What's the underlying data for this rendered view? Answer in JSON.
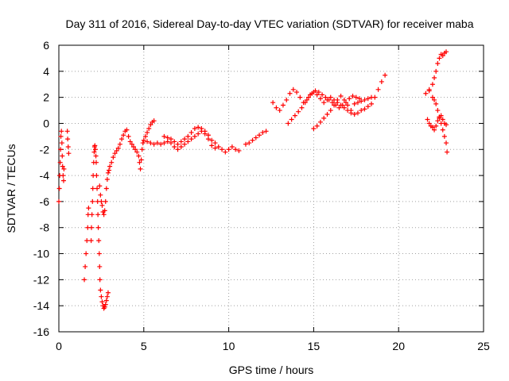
{
  "chart_data": {
    "type": "scatter",
    "title": "Day 311 of 2016, Sidereal Day-to-day VTEC variation (SDTVAR) for receiver maba",
    "xlabel": "GPS time / hours",
    "ylabel": "SDTVAR / TECUs",
    "xlim": [
      0,
      25
    ],
    "ylim": [
      -16,
      6
    ],
    "xticks": [
      "0",
      "5",
      "10",
      "15",
      "20",
      "25"
    ],
    "yticks": [
      "6",
      "4",
      "2",
      "0",
      "-2",
      "-4",
      "-6",
      "-8",
      "-10",
      "-12",
      "-14",
      "-16"
    ],
    "grid": true,
    "legend": "none",
    "marker": "+",
    "color": "#ff0000",
    "series": [
      {
        "points": [
          [
            0.0,
            -6.0
          ],
          [
            0.03,
            -5.0
          ],
          [
            0.05,
            -4.0
          ],
          [
            0.08,
            -3.0
          ],
          [
            0.1,
            -2.0
          ],
          [
            0.12,
            -1.0
          ],
          [
            0.15,
            -0.6
          ],
          [
            0.18,
            -1.5
          ],
          [
            0.2,
            -2.5
          ],
          [
            0.22,
            -3.3
          ],
          [
            0.25,
            -4.0
          ],
          [
            0.28,
            -4.4
          ],
          [
            0.3,
            -3.5
          ],
          [
            0.5,
            -0.6
          ],
          [
            0.52,
            -1.2
          ],
          [
            0.55,
            -1.8
          ],
          [
            0.58,
            -2.3
          ],
          [
            1.5,
            -12.0
          ],
          [
            1.55,
            -11.0
          ],
          [
            1.6,
            -10.0
          ],
          [
            1.65,
            -9.0
          ],
          [
            1.7,
            -8.0
          ],
          [
            1.72,
            -7.0
          ],
          [
            1.75,
            -6.5
          ],
          [
            1.9,
            -9.0
          ],
          [
            1.92,
            -8.0
          ],
          [
            1.95,
            -7.0
          ],
          [
            1.98,
            -6.0
          ],
          [
            2.0,
            -5.0
          ],
          [
            2.02,
            -4.0
          ],
          [
            2.05,
            -3.0
          ],
          [
            2.08,
            -2.2
          ],
          [
            2.1,
            -1.8
          ],
          [
            2.12,
            -1.7
          ],
          [
            2.15,
            -2.0
          ],
          [
            2.18,
            -2.5
          ],
          [
            2.2,
            -3.0
          ],
          [
            2.22,
            -4.0
          ],
          [
            2.25,
            -5.0
          ],
          [
            2.28,
            -6.0
          ],
          [
            2.3,
            -7.0
          ],
          [
            2.32,
            -8.0
          ],
          [
            2.35,
            -9.0
          ],
          [
            2.38,
            -10.0
          ],
          [
            2.4,
            -11.0
          ],
          [
            2.42,
            -12.0
          ],
          [
            2.45,
            -12.8
          ],
          [
            2.5,
            -13.3
          ],
          [
            2.55,
            -13.7
          ],
          [
            2.6,
            -14.0
          ],
          [
            2.65,
            -14.2
          ],
          [
            2.7,
            -14.1
          ],
          [
            2.75,
            -13.9
          ],
          [
            2.8,
            -13.6
          ],
          [
            2.85,
            -13.3
          ],
          [
            2.9,
            -13.0
          ],
          [
            2.4,
            -4.8
          ],
          [
            2.45,
            -5.5
          ],
          [
            2.5,
            -6.0
          ],
          [
            2.55,
            -6.3
          ],
          [
            2.6,
            -6.8
          ],
          [
            2.65,
            -7.0
          ],
          [
            2.7,
            -6.7
          ],
          [
            2.75,
            -6.0
          ],
          [
            2.8,
            -5.0
          ],
          [
            2.85,
            -4.3
          ],
          [
            2.9,
            -3.8
          ],
          [
            2.95,
            -3.6
          ],
          [
            3.0,
            -3.3
          ],
          [
            3.1,
            -3.0
          ],
          [
            3.2,
            -2.6
          ],
          [
            3.3,
            -2.3
          ],
          [
            3.4,
            -2.1
          ],
          [
            3.5,
            -1.9
          ],
          [
            3.6,
            -1.6
          ],
          [
            3.7,
            -1.2
          ],
          [
            3.8,
            -0.9
          ],
          [
            3.9,
            -0.6
          ],
          [
            4.0,
            -0.5
          ],
          [
            4.1,
            -1.0
          ],
          [
            4.2,
            -1.4
          ],
          [
            4.3,
            -1.6
          ],
          [
            4.4,
            -1.8
          ],
          [
            4.5,
            -2.0
          ],
          [
            4.6,
            -2.2
          ],
          [
            4.7,
            -2.5
          ],
          [
            4.75,
            -3.0
          ],
          [
            4.8,
            -3.5
          ],
          [
            4.85,
            -2.8
          ],
          [
            4.9,
            -2.0
          ],
          [
            4.95,
            -1.5
          ],
          [
            5.0,
            -1.3
          ],
          [
            5.1,
            -1.0
          ],
          [
            5.2,
            -0.7
          ],
          [
            5.3,
            -0.4
          ],
          [
            5.4,
            -0.1
          ],
          [
            5.5,
            0.1
          ],
          [
            5.6,
            0.2
          ],
          [
            5.2,
            -1.4
          ],
          [
            5.4,
            -1.5
          ],
          [
            5.6,
            -1.6
          ],
          [
            5.8,
            -1.5
          ],
          [
            6.0,
            -1.6
          ],
          [
            6.2,
            -1.5
          ],
          [
            6.4,
            -1.4
          ],
          [
            6.6,
            -1.5
          ],
          [
            6.8,
            -1.8
          ],
          [
            7.0,
            -2.0
          ],
          [
            7.2,
            -1.8
          ],
          [
            7.4,
            -1.6
          ],
          [
            7.6,
            -1.4
          ],
          [
            7.8,
            -1.2
          ],
          [
            8.0,
            -1.0
          ],
          [
            8.2,
            -0.8
          ],
          [
            8.4,
            -0.6
          ],
          [
            8.6,
            -0.8
          ],
          [
            8.8,
            -1.2
          ],
          [
            9.0,
            -1.7
          ],
          [
            9.2,
            -1.9
          ],
          [
            9.4,
            -1.8
          ],
          [
            9.6,
            -2.0
          ],
          [
            9.8,
            -2.2
          ],
          [
            10.0,
            -2.0
          ],
          [
            10.2,
            -1.8
          ],
          [
            10.4,
            -2.0
          ],
          [
            10.6,
            -2.1
          ],
          [
            6.2,
            -1.0
          ],
          [
            6.4,
            -1.1
          ],
          [
            6.6,
            -1.2
          ],
          [
            6.8,
            -1.4
          ],
          [
            7.0,
            -1.6
          ],
          [
            7.2,
            -1.4
          ],
          [
            7.4,
            -1.2
          ],
          [
            7.6,
            -1.0
          ],
          [
            7.8,
            -0.7
          ],
          [
            8.0,
            -0.4
          ],
          [
            8.2,
            -0.3
          ],
          [
            8.4,
            -0.4
          ],
          [
            8.6,
            -0.6
          ],
          [
            8.8,
            -0.9
          ],
          [
            9.0,
            -1.3
          ],
          [
            9.2,
            -1.5
          ],
          [
            11.0,
            -1.6
          ],
          [
            11.2,
            -1.5
          ],
          [
            11.4,
            -1.3
          ],
          [
            11.6,
            -1.1
          ],
          [
            11.8,
            -0.9
          ],
          [
            12.0,
            -0.7
          ],
          [
            12.2,
            -0.6
          ],
          [
            12.6,
            1.6
          ],
          [
            12.8,
            1.2
          ],
          [
            13.0,
            1.0
          ],
          [
            13.2,
            1.4
          ],
          [
            13.4,
            1.8
          ],
          [
            13.6,
            2.3
          ],
          [
            13.8,
            2.6
          ],
          [
            14.0,
            2.4
          ],
          [
            14.2,
            2.0
          ],
          [
            14.4,
            1.6
          ],
          [
            14.6,
            1.8
          ],
          [
            14.8,
            2.2
          ],
          [
            15.0,
            2.4
          ],
          [
            15.2,
            2.2
          ],
          [
            15.4,
            1.9
          ],
          [
            15.6,
            1.6
          ],
          [
            15.8,
            1.8
          ],
          [
            16.0,
            2.0
          ],
          [
            16.2,
            1.8
          ],
          [
            16.4,
            1.6
          ],
          [
            16.6,
            1.4
          ],
          [
            16.8,
            1.2
          ],
          [
            17.0,
            1.0
          ],
          [
            17.2,
            0.8
          ],
          [
            13.5,
            0.0
          ],
          [
            13.7,
            0.3
          ],
          [
            13.9,
            0.6
          ],
          [
            14.1,
            0.9
          ],
          [
            14.3,
            1.2
          ],
          [
            14.5,
            1.6
          ],
          [
            14.7,
            2.0
          ],
          [
            14.9,
            2.3
          ],
          [
            15.1,
            2.5
          ],
          [
            15.3,
            2.4
          ],
          [
            15.5,
            2.2
          ],
          [
            15.7,
            2.0
          ],
          [
            15.9,
            1.8
          ],
          [
            16.1,
            1.6
          ],
          [
            16.3,
            1.4
          ],
          [
            16.5,
            1.2
          ],
          [
            16.7,
            1.4
          ],
          [
            16.9,
            1.6
          ],
          [
            17.1,
            1.9
          ],
          [
            17.3,
            2.1
          ],
          [
            17.5,
            2.0
          ],
          [
            17.7,
            1.9
          ],
          [
            15.0,
            -0.4
          ],
          [
            15.2,
            -0.2
          ],
          [
            15.4,
            0.1
          ],
          [
            15.6,
            0.4
          ],
          [
            15.8,
            0.7
          ],
          [
            16.0,
            1.0
          ],
          [
            16.2,
            1.4
          ],
          [
            16.4,
            1.8
          ],
          [
            16.6,
            2.1
          ],
          [
            16.8,
            1.8
          ],
          [
            17.0,
            1.4
          ],
          [
            17.2,
            1.0
          ],
          [
            17.4,
            0.7
          ],
          [
            17.6,
            0.8
          ],
          [
            17.8,
            1.0
          ],
          [
            18.0,
            1.1
          ],
          [
            18.2,
            1.3
          ],
          [
            18.4,
            1.5
          ],
          [
            18.6,
            2.0
          ],
          [
            18.8,
            2.6
          ],
          [
            19.0,
            3.2
          ],
          [
            19.2,
            3.7
          ],
          [
            17.4,
            1.5
          ],
          [
            17.6,
            1.6
          ],
          [
            17.8,
            1.7
          ],
          [
            18.0,
            1.8
          ],
          [
            18.2,
            1.9
          ],
          [
            18.4,
            2.0
          ],
          [
            21.6,
            2.3
          ],
          [
            21.8,
            2.6
          ],
          [
            22.0,
            3.0
          ],
          [
            22.1,
            3.5
          ],
          [
            22.2,
            4.0
          ],
          [
            22.3,
            4.6
          ],
          [
            22.4,
            5.0
          ],
          [
            22.5,
            5.3
          ],
          [
            22.6,
            5.2
          ],
          [
            22.7,
            5.4
          ],
          [
            22.8,
            5.5
          ],
          [
            21.8,
            2.5
          ],
          [
            22.0,
            2.0
          ],
          [
            22.1,
            1.8
          ],
          [
            22.2,
            1.5
          ],
          [
            22.3,
            1.0
          ],
          [
            22.4,
            0.5
          ],
          [
            22.5,
            0.0
          ],
          [
            22.6,
            -0.5
          ],
          [
            22.7,
            -1.0
          ],
          [
            22.8,
            -1.5
          ],
          [
            22.85,
            -2.2
          ],
          [
            21.7,
            0.3
          ],
          [
            21.8,
            0.0
          ],
          [
            21.9,
            -0.2
          ],
          [
            22.0,
            -0.3
          ],
          [
            22.1,
            -0.5
          ],
          [
            22.2,
            -0.2
          ],
          [
            22.3,
            0.2
          ],
          [
            22.4,
            0.4
          ],
          [
            22.5,
            0.6
          ],
          [
            22.6,
            0.3
          ],
          [
            22.7,
            0.0
          ],
          [
            22.8,
            -0.1
          ]
        ]
      }
    ]
  }
}
